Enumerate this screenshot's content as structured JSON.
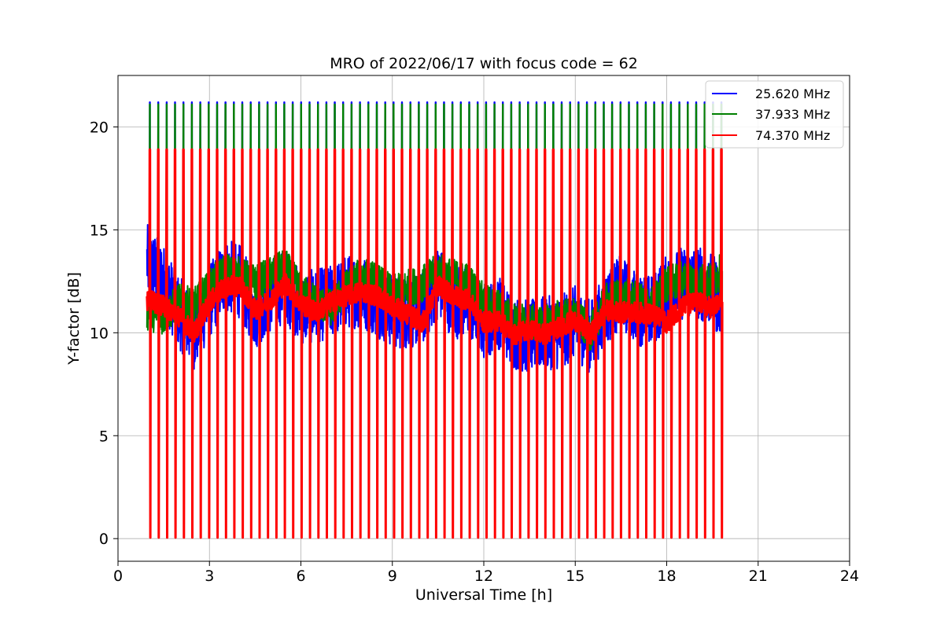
{
  "chart_data": {
    "type": "line",
    "title": "MRO of 2022/06/17 with focus code = 62",
    "xlabel": "Universal Time [h]",
    "ylabel": "Y-factor [dB]",
    "xlim": [
      0,
      24
    ],
    "ylim": [
      -1.1,
      22.5
    ],
    "xticks": [
      0,
      3,
      6,
      9,
      12,
      15,
      18,
      21,
      24
    ],
    "yticks": [
      0,
      5,
      10,
      15,
      20
    ],
    "grid": true,
    "legend_position": "top-right",
    "series": [
      {
        "name": "25.620 MHz",
        "color": "#0000ff",
        "baseline": {
          "x": [
            0.95,
            1.5,
            2.0,
            2.5,
            3.0,
            3.5,
            4.0,
            4.5,
            5.0,
            5.5,
            6.0,
            6.5,
            7.0,
            7.5,
            8.0,
            8.5,
            9.0,
            9.5,
            10.0,
            10.5,
            11.0,
            11.5,
            12.0,
            12.5,
            13.0,
            13.5,
            14.0,
            14.5,
            15.0,
            15.5,
            16.0,
            16.5,
            17.0,
            17.5,
            18.0,
            18.5,
            19.0,
            19.5,
            19.8
          ],
          "y": [
            13.5,
            12.5,
            11.0,
            10.0,
            11.5,
            12.8,
            12.5,
            11.0,
            11.8,
            12.3,
            11.2,
            11.3,
            11.5,
            12.0,
            12.0,
            11.6,
            11.0,
            11.0,
            11.2,
            12.5,
            11.5,
            11.5,
            10.5,
            11.0,
            10.0,
            9.8,
            10.0,
            10.0,
            10.5,
            9.8,
            11.2,
            12.0,
            11.2,
            11.0,
            12.0,
            12.4,
            12.5,
            12.0,
            11.5
          ]
        },
        "spread_db": 1.8,
        "spike_peak_db": 21.2,
        "spike_floor_db": 0.1
      },
      {
        "name": "37.933 MHz",
        "color": "#008000",
        "baseline": {
          "x": [
            0.95,
            1.5,
            2.0,
            2.5,
            3.0,
            3.5,
            4.0,
            4.5,
            5.0,
            5.5,
            6.0,
            6.5,
            7.0,
            7.5,
            8.0,
            8.5,
            9.0,
            9.5,
            10.0,
            10.5,
            11.0,
            11.5,
            12.0,
            12.5,
            13.0,
            13.5,
            14.0,
            14.5,
            15.0,
            15.5,
            16.0,
            16.5,
            17.0,
            17.5,
            18.0,
            18.5,
            19.0,
            19.5,
            19.8
          ],
          "y": [
            11.0,
            10.8,
            11.5,
            11.3,
            12.2,
            13.0,
            12.8,
            12.4,
            12.8,
            13.2,
            12.0,
            11.5,
            11.2,
            12.2,
            12.8,
            12.5,
            11.9,
            12.2,
            12.4,
            13.0,
            12.7,
            12.5,
            11.5,
            11.2,
            10.6,
            10.5,
            10.4,
            10.8,
            10.8,
            10.0,
            11.5,
            11.8,
            11.6,
            11.3,
            12.4,
            12.6,
            12.5,
            12.5,
            13.0
          ]
        },
        "spread_db": 0.9,
        "spike_peak_db": 21.1,
        "spike_floor_db": 0.1
      },
      {
        "name": "74.370 MHz",
        "color": "#ff0000",
        "baseline": {
          "x": [
            0.95,
            1.5,
            2.0,
            2.5,
            3.0,
            3.5,
            4.0,
            4.5,
            5.0,
            5.5,
            6.0,
            6.5,
            7.0,
            7.5,
            8.0,
            8.5,
            9.0,
            9.5,
            10.0,
            10.5,
            11.0,
            11.5,
            12.0,
            12.5,
            13.0,
            13.5,
            14.0,
            14.5,
            15.0,
            15.5,
            16.0,
            16.5,
            17.0,
            17.5,
            18.0,
            18.5,
            19.0,
            19.5,
            19.8
          ],
          "y": [
            11.6,
            11.3,
            10.8,
            10.0,
            11.5,
            12.2,
            12.3,
            11.1,
            11.6,
            12.4,
            11.4,
            11.0,
            11.5,
            11.8,
            12.0,
            11.8,
            11.3,
            10.9,
            10.5,
            12.3,
            11.8,
            11.6,
            10.5,
            10.6,
            9.9,
            10.2,
            9.9,
            10.3,
            10.6,
            9.9,
            11.1,
            11.0,
            11.0,
            10.9,
            10.5,
            11.3,
            11.5,
            11.2,
            11.5
          ]
        },
        "spread_db": 0.5,
        "spike_peak_db": 18.9,
        "spike_floor_db": 0.05
      }
    ],
    "spikes": {
      "start_h": 1.05,
      "end_h": 19.8,
      "count": 69
    }
  }
}
